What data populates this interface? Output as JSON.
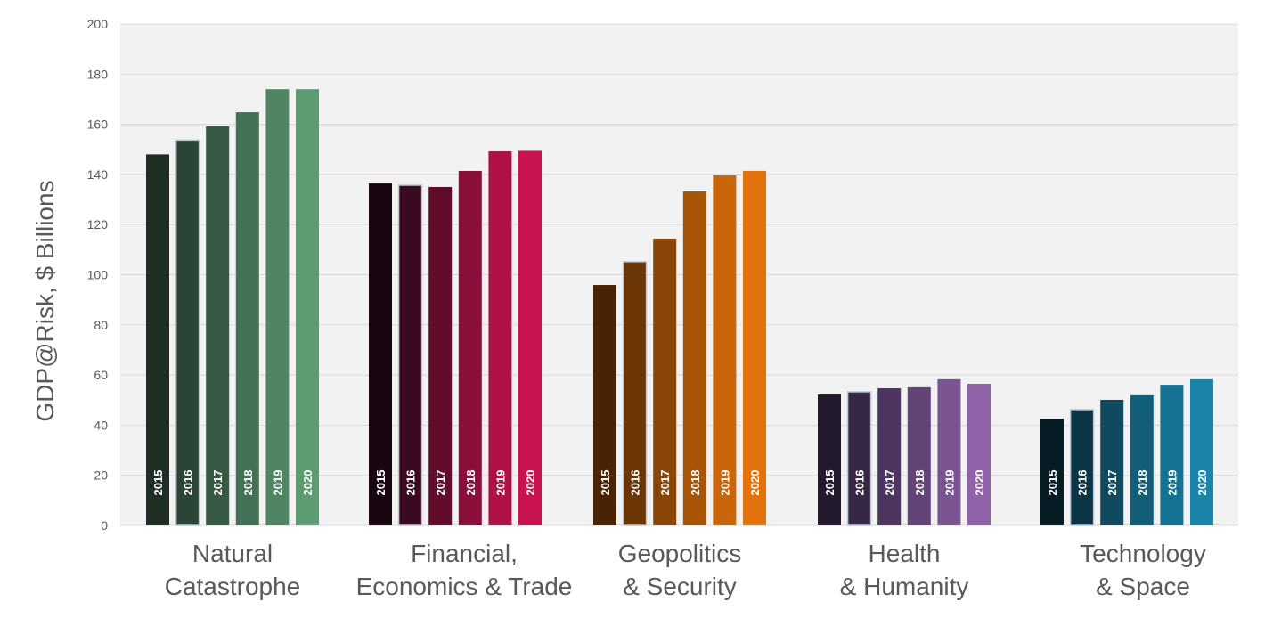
{
  "chart_data": {
    "type": "bar",
    "title": "",
    "xlabel": "",
    "ylabel": "GDP@Risk, $ Billions",
    "ylim": [
      0,
      200
    ],
    "yticks": [
      0,
      20,
      40,
      60,
      80,
      100,
      120,
      140,
      160,
      180,
      200
    ],
    "grid": true,
    "legend": "none (years printed inside bars)",
    "years": [
      "2015",
      "2016",
      "2017",
      "2018",
      "2019",
      "2020"
    ],
    "groups": [
      {
        "label_lines": [
          "Natural",
          "Catastrophe"
        ],
        "values": [
          148,
          153.7,
          159.2,
          164.8,
          174,
          174
        ],
        "colors": [
          "#1e2e24",
          "#2a4535",
          "#375a45",
          "#437155",
          "#4f8562",
          "#5c9a72"
        ]
      },
      {
        "label_lines": [
          "Financial,",
          "Economics & Trade"
        ],
        "values": [
          136.4,
          135.7,
          135,
          141.4,
          149.2,
          149.4
        ],
        "colors": [
          "#1a0610",
          "#3a0a20",
          "#600c2a",
          "#8a0f3a",
          "#ad1145",
          "#c8134f"
        ]
      },
      {
        "label_lines": [
          "Geopolitics",
          "& Security"
        ],
        "values": [
          95.9,
          105.2,
          114.4,
          133.2,
          139.6,
          141.4
        ],
        "colors": [
          "#4a2204",
          "#6b3506",
          "#8a4507",
          "#a85508",
          "#c9650a",
          "#e2720c"
        ]
      },
      {
        "label_lines": [
          "Health",
          "& Humanity"
        ],
        "values": [
          52.2,
          53.3,
          54.7,
          55.1,
          58.3,
          56.5
        ],
        "colors": [
          "#231a2e",
          "#362844",
          "#4e3560",
          "#634476",
          "#7a5490",
          "#9062a8"
        ]
      },
      {
        "label_lines": [
          "Technology",
          "& Space"
        ],
        "values": [
          42.6,
          46.2,
          50.1,
          51.9,
          56.1,
          58.3
        ],
        "colors": [
          "#061c24",
          "#0b3445",
          "#0f4a5e",
          "#125e78",
          "#167292",
          "#1a85a8"
        ]
      }
    ],
    "plot_background": "#f2f2f2",
    "grid_color": "#d9d9d9"
  }
}
